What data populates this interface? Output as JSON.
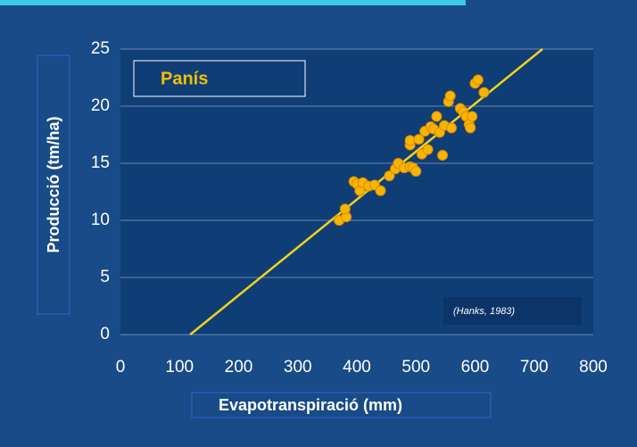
{
  "chart_data": {
    "type": "scatter",
    "legend_label": "Panís",
    "annotation": "(Hanks, 1983)",
    "x_label": "Evapotranspiració (mm)",
    "y_label": "Producció (tm/ha)",
    "xlim": [
      0,
      800
    ],
    "xticks": [
      0,
      100,
      200,
      300,
      400,
      500,
      600,
      700,
      800
    ],
    "ylim": [
      0,
      25
    ],
    "yticks": [
      0,
      5,
      10,
      15,
      20,
      25
    ],
    "grid": true,
    "series": [
      {
        "color": "#f7b500",
        "x": [
          370,
          382,
          380,
          395,
          400,
          405,
          410,
          420,
          430,
          440,
          455,
          465,
          470,
          480,
          490,
          490,
          490,
          495,
          500,
          505,
          510,
          515,
          520,
          525,
          530,
          535,
          540,
          545,
          548,
          555,
          558,
          560,
          575,
          580,
          585,
          590,
          592,
          595,
          600,
          605,
          615
        ],
        "values": [
          10.0,
          10.3,
          11.0,
          13.4,
          13.2,
          12.6,
          13.3,
          13.0,
          13.1,
          12.6,
          13.9,
          14.5,
          15.0,
          14.6,
          14.7,
          16.6,
          17.0,
          14.6,
          14.3,
          17.1,
          15.8,
          17.8,
          16.2,
          18.2,
          18.0,
          19.1,
          17.7,
          15.7,
          18.3,
          20.4,
          20.9,
          18.1,
          19.8,
          19.5,
          19.1,
          18.4,
          18.1,
          19.1,
          22.0,
          22.3,
          21.2
        ]
      },
      {
        "type": "line",
        "color": "#f2d21a",
        "x": [
          118,
          714
        ],
        "values": [
          0,
          25
        ]
      }
    ]
  }
}
